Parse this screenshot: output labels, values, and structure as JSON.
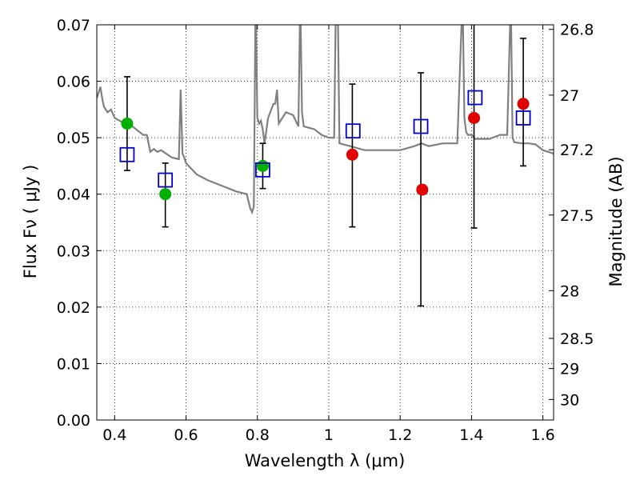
{
  "chart_data": {
    "type": "scatter",
    "xlabel": "Wavelength  λ (μm)",
    "ylabel": "Flux  Fν  ( μJy )",
    "y2label": "Magnitude (AB)",
    "xlim": [
      0.35,
      1.63
    ],
    "ylim": [
      0.0,
      0.07
    ],
    "grid": true,
    "x_ticks": [
      0.4,
      0.6,
      0.8,
      1.0,
      1.2,
      1.4,
      1.6
    ],
    "x_tick_labels": [
      "0.4",
      "0.6",
      "0.8",
      "1",
      "1.2",
      "1.4",
      "1.6"
    ],
    "y_ticks": [
      0.0,
      0.01,
      0.02,
      0.03,
      0.04,
      0.05,
      0.06,
      0.07
    ],
    "y_tick_labels": [
      "0.00",
      "0.01",
      "0.02",
      "0.03",
      "0.04",
      "0.05",
      "0.06",
      "0.07"
    ],
    "y2_ticks": [
      "26.8",
      "27",
      "27.2",
      "27.5",
      "28",
      "28.5",
      "29",
      "30"
    ],
    "colors": {
      "spectrum": "#808080",
      "green_points": "#00b000",
      "red_points": "#e00000",
      "model_squares": "#0000cc",
      "errorbars": "#000000"
    },
    "spectrum": {
      "x": [
        0.35,
        0.36,
        0.365,
        0.37,
        0.38,
        0.39,
        0.4,
        0.42,
        0.44,
        0.46,
        0.48,
        0.49,
        0.5,
        0.51,
        0.52,
        0.53,
        0.56,
        0.58,
        0.585,
        0.59,
        0.595,
        0.6,
        0.63,
        0.66,
        0.7,
        0.74,
        0.77,
        0.78,
        0.785,
        0.79,
        0.795,
        0.8,
        0.805,
        0.81,
        0.815,
        0.82,
        0.83,
        0.845,
        0.85,
        0.855,
        0.86,
        0.88,
        0.9,
        0.915,
        0.92,
        0.925,
        0.93,
        0.96,
        0.98,
        1.0,
        1.015,
        1.02,
        1.025,
        1.03,
        1.06,
        1.1,
        1.14,
        1.18,
        1.2,
        1.24,
        1.26,
        1.28,
        1.32,
        1.36,
        1.375,
        1.38,
        1.385,
        1.39,
        1.4,
        1.41,
        1.42,
        1.45,
        1.48,
        1.5,
        1.51,
        1.515,
        1.52,
        1.54,
        1.56,
        1.58,
        1.6,
        1.63
      ],
      "y": [
        0.057,
        0.059,
        0.057,
        0.0555,
        0.0545,
        0.055,
        0.0535,
        0.0528,
        0.0525,
        0.0515,
        0.0505,
        0.0505,
        0.0475,
        0.048,
        0.0475,
        0.0478,
        0.0465,
        0.0462,
        0.0585,
        0.0472,
        0.0465,
        0.0455,
        0.0435,
        0.0425,
        0.0415,
        0.0405,
        0.04,
        0.0375,
        0.0368,
        0.0378,
        0.075,
        0.0535,
        0.0525,
        0.053,
        0.0515,
        0.049,
        0.0535,
        0.056,
        0.056,
        0.0585,
        0.0525,
        0.0545,
        0.054,
        0.052,
        0.075,
        0.0545,
        0.052,
        0.0515,
        0.0505,
        0.05,
        0.05,
        0.075,
        0.075,
        0.049,
        0.0485,
        0.0478,
        0.0478,
        0.0478,
        0.0478,
        0.0485,
        0.049,
        0.0485,
        0.049,
        0.049,
        0.075,
        0.0535,
        0.051,
        0.0505,
        0.0505,
        0.0498,
        0.0498,
        0.0498,
        0.0505,
        0.0505,
        0.075,
        0.05,
        0.0492,
        0.049,
        0.049,
        0.0488,
        0.0478,
        0.0472
      ]
    },
    "green_points": {
      "x": [
        0.435,
        0.542,
        0.815
      ],
      "y": [
        0.0525,
        0.04,
        0.045
      ]
    },
    "red_points": {
      "x": [
        1.066,
        1.262,
        1.407,
        1.545
      ],
      "y": [
        0.047,
        0.0408,
        0.0535,
        0.056
      ]
    },
    "model_squares": {
      "x": [
        0.435,
        0.542,
        0.815,
        1.068,
        1.258,
        1.41,
        1.545
      ],
      "y": [
        0.047,
        0.0425,
        0.0443,
        0.0512,
        0.052,
        0.0571,
        0.0535
      ]
    },
    "errorbars": {
      "x": [
        0.435,
        0.542,
        0.815,
        1.066,
        1.258,
        1.407,
        1.545
      ],
      "ylow": [
        0.0442,
        0.0342,
        0.041,
        0.0342,
        0.0202,
        0.034,
        0.045
      ],
      "yhigh": [
        0.0608,
        0.0455,
        0.049,
        0.0595,
        0.0615,
        0.0745,
        0.0676
      ]
    }
  }
}
